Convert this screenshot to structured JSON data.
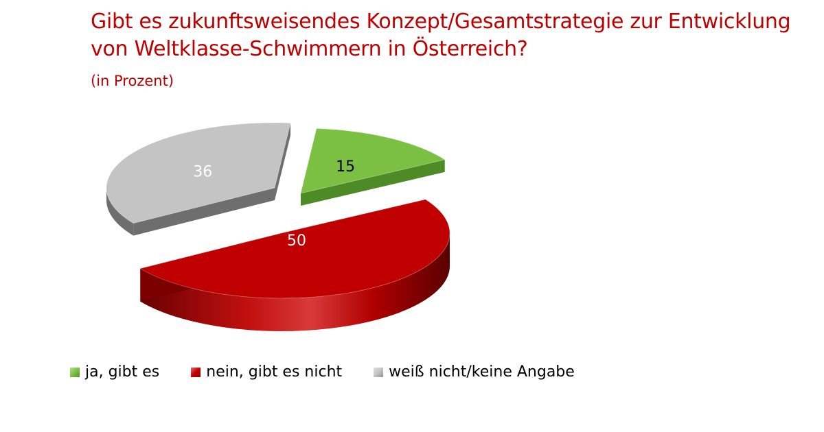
{
  "chart_data": {
    "type": "pie",
    "title": "Gibt es zukunftsweisendes Konzept/Gesamtstrategie zur Entwicklung von Weltklasse-Schwimmern in Österreich?",
    "subtitle": "(in Prozent)",
    "slices": [
      {
        "label": "ja, gibt es",
        "value": 15,
        "color": "#7bc043",
        "dark": "#4e8a26"
      },
      {
        "label": "nein, gibt es nicht",
        "value": 50,
        "color": "#c00000",
        "dark": "#7a0000"
      },
      {
        "label": "weiß nicht/keine Angabe",
        "value": 36,
        "color": "#c4c4c4",
        "dark": "#6e6e6e"
      }
    ],
    "legend_position": "bottom-left",
    "style": "3d-exploded"
  }
}
